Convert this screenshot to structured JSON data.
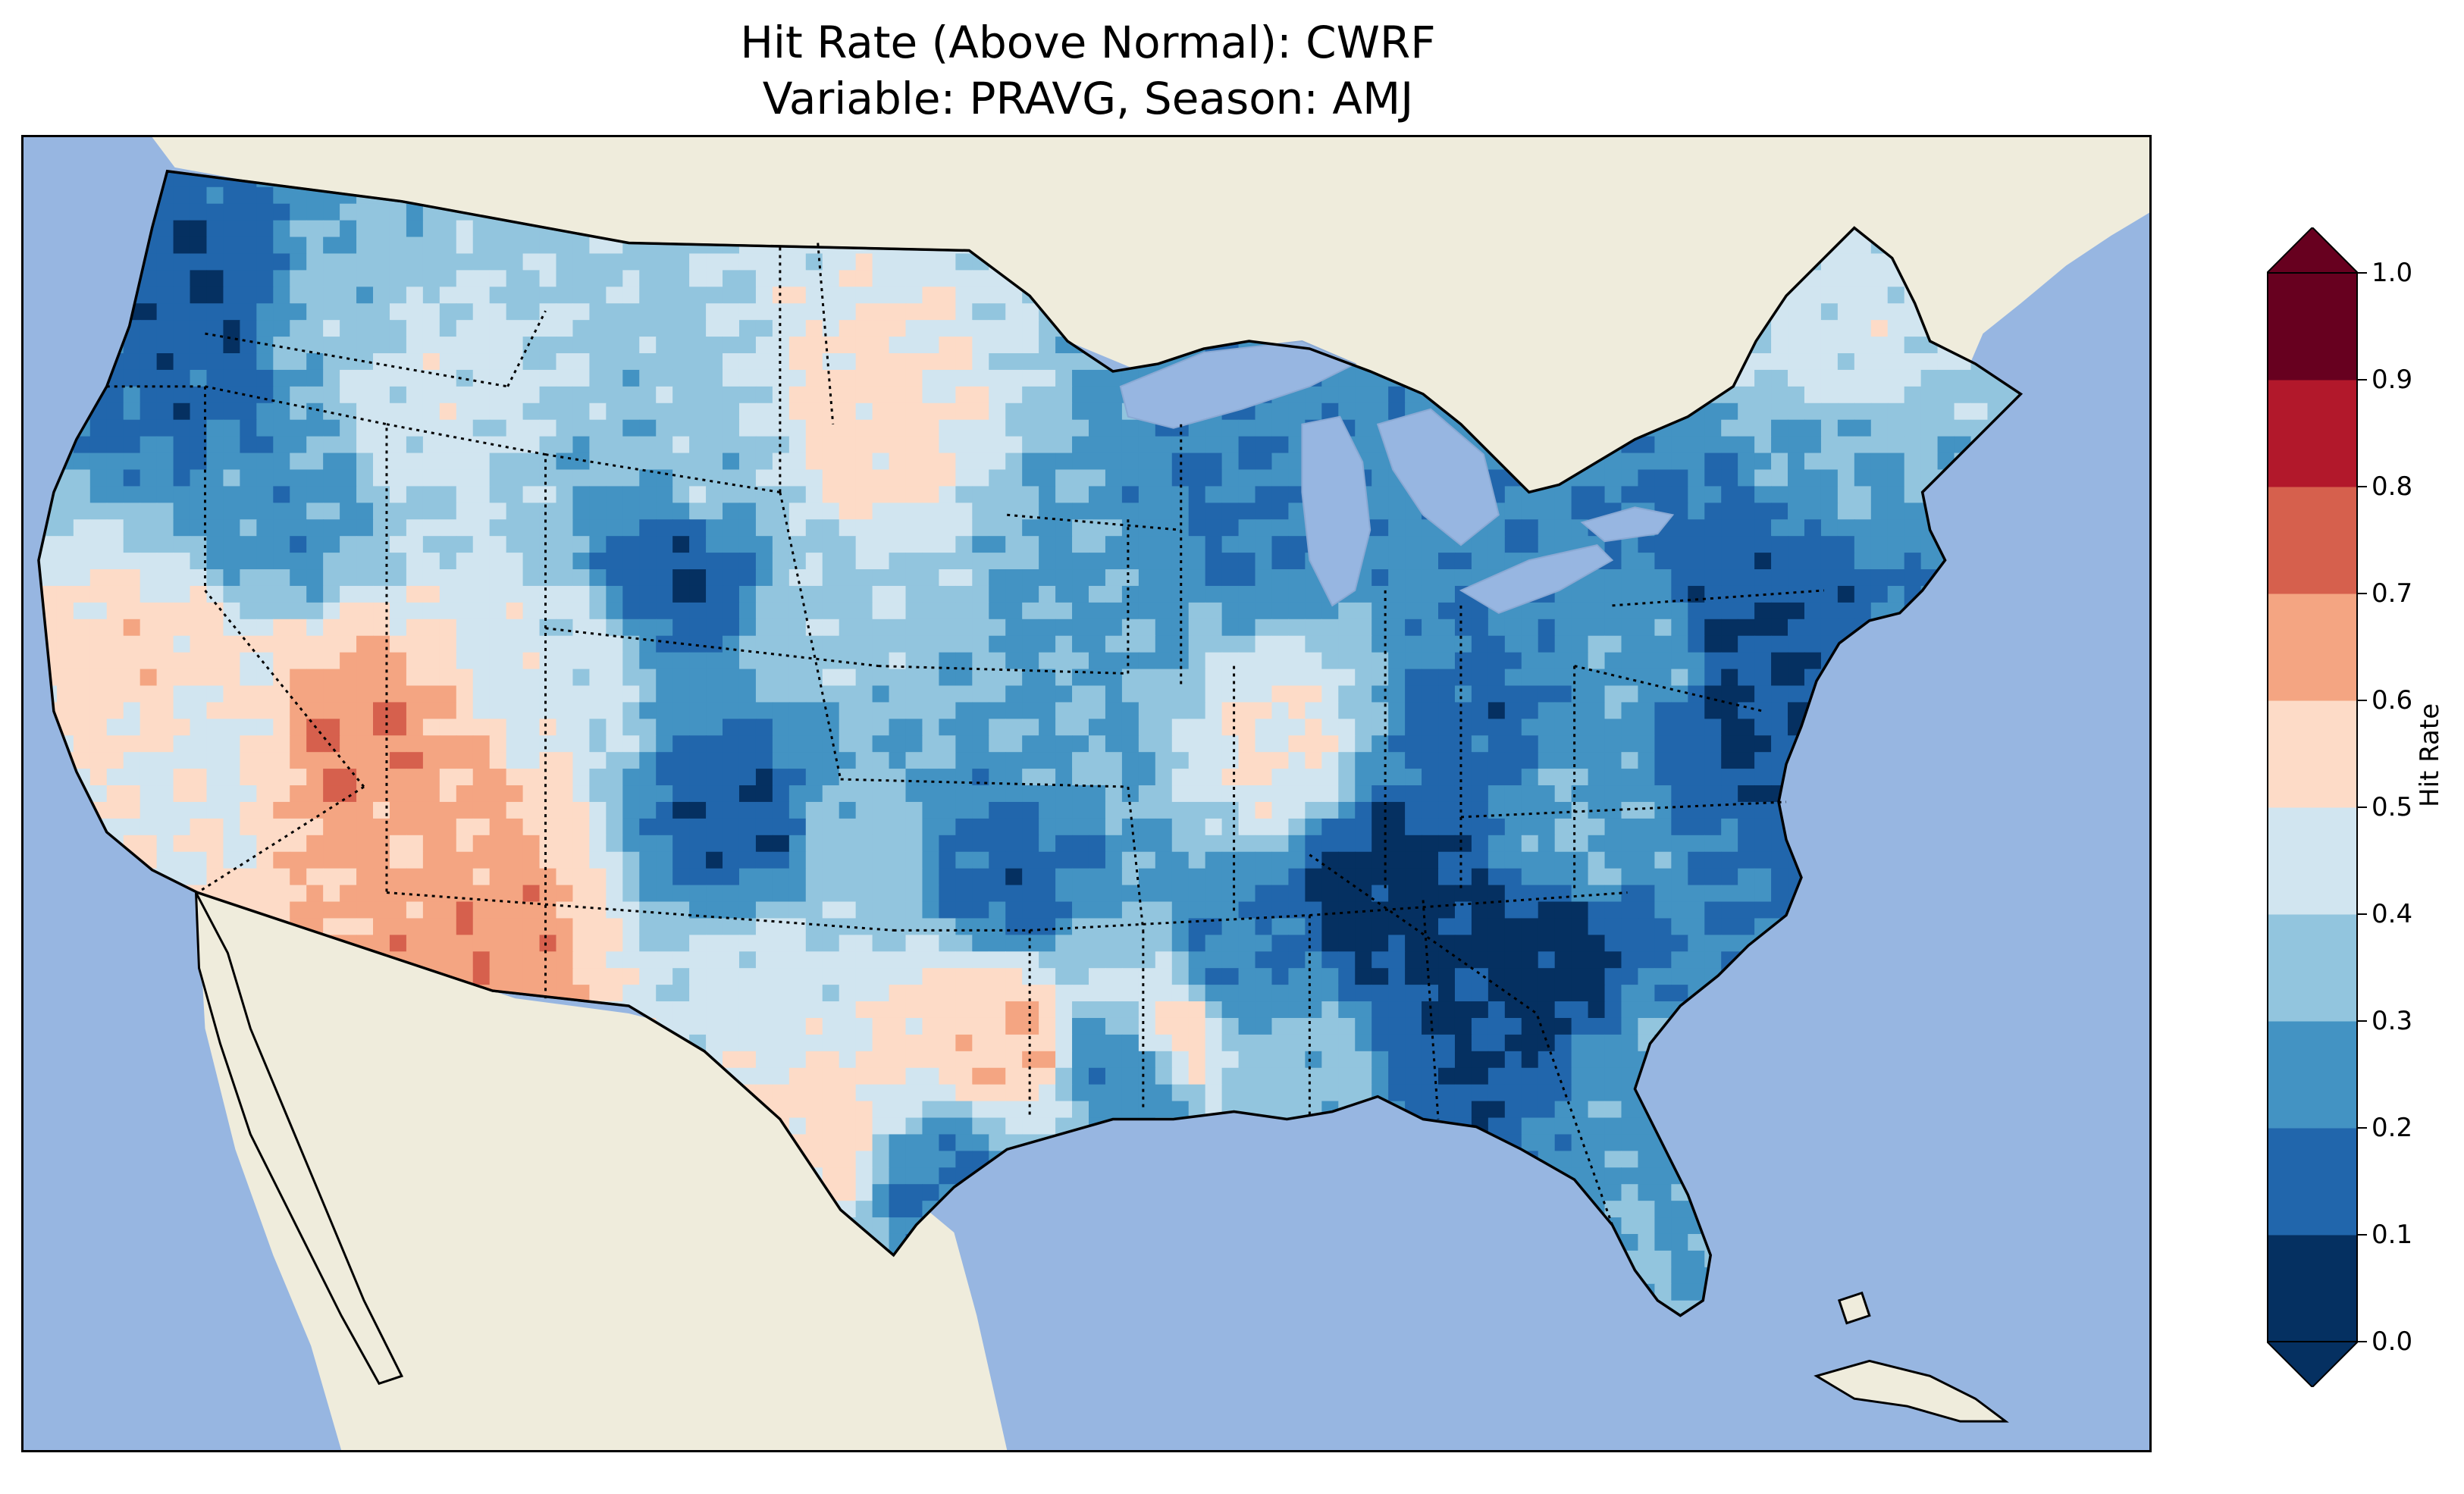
{
  "title": {
    "line1": "Hit Rate (Above Normal): CWRF",
    "line2": "Variable: PRAVG, Season: AMJ"
  },
  "colors": {
    "ocean": "#97b6e1",
    "land": "#efecdc",
    "border": "#000000"
  },
  "colorbar": {
    "label": "Hit Rate",
    "extend": "both",
    "ticks": [
      "0.0",
      "0.1",
      "0.2",
      "0.3",
      "0.4",
      "0.5",
      "0.6",
      "0.7",
      "0.8",
      "0.9",
      "1.0"
    ],
    "bins": [
      {
        "range": [
          0.0,
          0.1
        ],
        "color": "#053061"
      },
      {
        "range": [
          0.1,
          0.2
        ],
        "color": "#2166ac"
      },
      {
        "range": [
          0.2,
          0.3
        ],
        "color": "#4393c3"
      },
      {
        "range": [
          0.3,
          0.4
        ],
        "color": "#92c5de"
      },
      {
        "range": [
          0.4,
          0.5
        ],
        "color": "#d1e5f0"
      },
      {
        "range": [
          0.5,
          0.6
        ],
        "color": "#fddbc7"
      },
      {
        "range": [
          0.6,
          0.7
        ],
        "color": "#f4a582"
      },
      {
        "range": [
          0.7,
          0.8
        ],
        "color": "#d6604d"
      },
      {
        "range": [
          0.8,
          0.9
        ],
        "color": "#b2182b"
      },
      {
        "range": [
          0.9,
          1.0
        ],
        "color": "#67001f"
      }
    ],
    "under_color": "#053061",
    "over_color": "#67001f"
  },
  "map": {
    "type": "gridded choropleth",
    "region": "Contiguous United States",
    "features": [
      "coastlines",
      "state borders",
      "country borders",
      "lakes"
    ]
  }
}
